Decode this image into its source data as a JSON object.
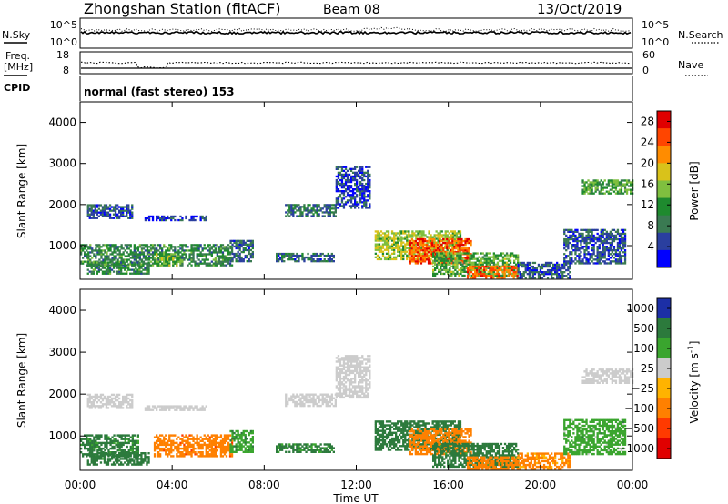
{
  "header": {
    "title": "Zhongshan Station (fitACF)",
    "beam": "Beam 08",
    "date": "13/Oct/2019",
    "mode": "normal (fast stereo) 153"
  },
  "top_panels": {
    "nsky_label": "N.Sky",
    "nsky_ticks": [
      "10^5",
      "10^0"
    ],
    "nsearch_label": "N.Search",
    "nsearch_ticks": [
      "10^5",
      "10^0"
    ],
    "freq_label": "Freq.",
    "freq_unit": "[MHz]",
    "freq_ticks": [
      "18",
      "8"
    ],
    "nave_label": "Nave",
    "nave_ticks": [
      "60",
      "0"
    ],
    "cpid_label": "CPID"
  },
  "chart_data": [
    {
      "type": "heatmap",
      "name": "power",
      "ylabel": "Slant Range [km]",
      "xlabel": "Time UT",
      "xlim": [
        0,
        24
      ],
      "ylim": [
        180,
        4500
      ],
      "yticks": [
        "1000",
        "2000",
        "3000",
        "4000"
      ],
      "xticks": [
        "00:00",
        "04:00",
        "08:00",
        "12:00",
        "16:00",
        "20:00",
        "00:00"
      ],
      "colorbar": {
        "label": "Power [dB]",
        "ticks": [
          "4",
          "8",
          "12",
          "16",
          "20",
          "24",
          "28"
        ],
        "range": [
          0,
          30
        ]
      },
      "regions": [
        {
          "t0": 0.3,
          "t1": 2.3,
          "r0": 1650,
          "r1": 2000,
          "val": 6
        },
        {
          "t0": 0.0,
          "t1": 6.6,
          "r0": 500,
          "r1": 1000,
          "val": 10
        },
        {
          "t0": 3.2,
          "t1": 4.3,
          "r0": 500,
          "r1": 800,
          "val": 14
        },
        {
          "t0": 0.3,
          "t1": 3.0,
          "r0": 300,
          "r1": 600,
          "val": 10
        },
        {
          "t0": 2.8,
          "t1": 5.5,
          "r0": 1600,
          "r1": 1700,
          "val": 4
        },
        {
          "t0": 6.5,
          "t1": 7.5,
          "r0": 600,
          "r1": 1100,
          "val": 7
        },
        {
          "t0": 8.9,
          "t1": 11.1,
          "r0": 1700,
          "r1": 2000,
          "val": 8
        },
        {
          "t0": 11.1,
          "t1": 12.6,
          "r0": 1900,
          "r1": 2900,
          "val": 5
        },
        {
          "t0": 8.5,
          "t1": 11.0,
          "r0": 600,
          "r1": 800,
          "val": 7
        },
        {
          "t0": 12.8,
          "t1": 16.5,
          "r0": 650,
          "r1": 1350,
          "val": 16
        },
        {
          "t0": 14.3,
          "t1": 17.0,
          "r0": 550,
          "r1": 1150,
          "val": 25
        },
        {
          "t0": 15.3,
          "t1": 19.0,
          "r0": 250,
          "r1": 800,
          "val": 13
        },
        {
          "t0": 16.8,
          "t1": 19.0,
          "r0": 200,
          "r1": 500,
          "val": 24
        },
        {
          "t0": 19.0,
          "t1": 21.3,
          "r0": 200,
          "r1": 600,
          "val": 6
        },
        {
          "t0": 21.0,
          "t1": 23.7,
          "r0": 550,
          "r1": 1400,
          "val": 6
        },
        {
          "t0": 21.8,
          "t1": 24.0,
          "r0": 2250,
          "r1": 2600,
          "val": 12
        }
      ]
    },
    {
      "type": "heatmap",
      "name": "velocity",
      "ylabel": "Slant Range [km]",
      "xlabel": "Time UT",
      "xlim": [
        0,
        24
      ],
      "ylim": [
        180,
        4500
      ],
      "yticks": [
        "1000",
        "2000",
        "3000",
        "4000"
      ],
      "xticks": [
        "00:00",
        "04:00",
        "08:00",
        "12:00",
        "16:00",
        "20:00",
        "00:00"
      ],
      "colorbar": {
        "label": "Velocity [m s^-1]",
        "ticks": [
          "1000",
          "500",
          "100",
          "25",
          "−25",
          "−100",
          "−500",
          "−1000"
        ]
      },
      "regions": [
        {
          "t0": 0.3,
          "t1": 2.3,
          "r0": 1650,
          "r1": 2000,
          "val": 0
        },
        {
          "t0": 0.0,
          "t1": 2.5,
          "r0": 500,
          "r1": 1000,
          "val": 150
        },
        {
          "t0": 3.2,
          "t1": 6.6,
          "r0": 500,
          "r1": 1000,
          "val": -350
        },
        {
          "t0": 0.3,
          "t1": 3.0,
          "r0": 300,
          "r1": 600,
          "val": 200
        },
        {
          "t0": 2.8,
          "t1": 5.5,
          "r0": 1600,
          "r1": 1700,
          "val": 0
        },
        {
          "t0": 6.5,
          "t1": 7.5,
          "r0": 600,
          "r1": 1100,
          "val": 80
        },
        {
          "t0": 8.9,
          "t1": 11.1,
          "r0": 1700,
          "r1": 2000,
          "val": 0
        },
        {
          "t0": 11.1,
          "t1": 12.6,
          "r0": 1900,
          "r1": 2900,
          "val": 0
        },
        {
          "t0": 8.5,
          "t1": 11.0,
          "r0": 600,
          "r1": 800,
          "val": 150
        },
        {
          "t0": 12.8,
          "t1": 16.5,
          "r0": 650,
          "r1": 1350,
          "val": 250
        },
        {
          "t0": 14.3,
          "t1": 17.0,
          "r0": 550,
          "r1": 1150,
          "val": -300
        },
        {
          "t0": 15.3,
          "t1": 19.0,
          "r0": 250,
          "r1": 800,
          "val": 180
        },
        {
          "t0": 16.8,
          "t1": 19.0,
          "r0": 200,
          "r1": 500,
          "val": -250
        },
        {
          "t0": 19.0,
          "t1": 21.3,
          "r0": 200,
          "r1": 600,
          "val": -150
        },
        {
          "t0": 21.0,
          "t1": 23.7,
          "r0": 550,
          "r1": 1400,
          "val": 60
        },
        {
          "t0": 21.8,
          "t1": 24.0,
          "r0": 2250,
          "r1": 2600,
          "val": 0
        }
      ]
    }
  ],
  "colors": {
    "power_scale": [
      "#0000ff",
      "#2a3f9f",
      "#3a7a52",
      "#1e8a2e",
      "#7fbf3f",
      "#d9c21a",
      "#ff8c00",
      "#ff4500",
      "#e00000"
    ],
    "velocity_scale": [
      "#1c2fa6",
      "#2c7a3c",
      "#3aa52e",
      "#cccccc",
      "#ffb300",
      "#ff8000",
      "#ff3a00",
      "#e00000"
    ]
  }
}
